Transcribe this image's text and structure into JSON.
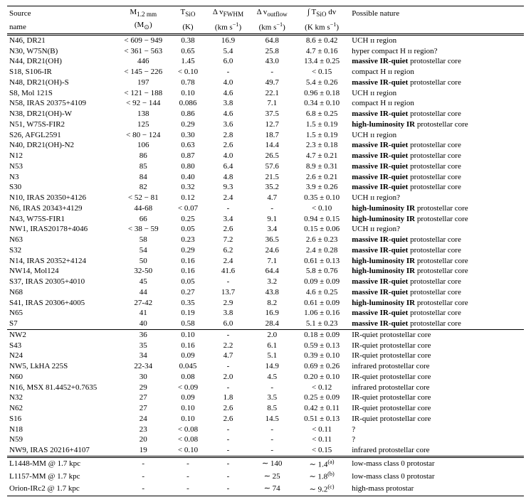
{
  "columns": {
    "name": {
      "h1": "Source",
      "h2": "name"
    },
    "m12": {
      "h1": "M<sub>1.2 mm</sub>",
      "h2": "(M<sub>⊙</sub>)"
    },
    "tsio": {
      "h1": "T<sub>SiO</sub>",
      "h2": "(K)"
    },
    "dvfwhm": {
      "h1": "Δ v<sub>FWHM</sub>",
      "h2": "(km s<sup>−1</sup>)"
    },
    "dvout": {
      "h1": "Δ v<sub>outflow</sub>",
      "h2": "(km s<sup>−1</sup>)"
    },
    "intTsio": {
      "h1": "∫ T<sub>SiO</sub> dv",
      "h2": "(K km s<sup>−1</sup>)"
    },
    "nature": {
      "h1": "Possible nature",
      "h2": ""
    }
  },
  "rows": [
    {
      "name": "N46, DR21",
      "m12": "< 609 − 949",
      "tsio": "0.38",
      "dvfwhm": "16.9",
      "dvout": "64.8",
      "int": "8.6 ± 0.42",
      "nature": "UCH ɪɪ region"
    },
    {
      "name": "N30, W75N(B)",
      "m12": "< 361 − 563",
      "tsio": "0.65",
      "dvfwhm": "5.4",
      "dvout": "25.8",
      "int": "4.7 ± 0.16",
      "nature": "hyper compact H ɪɪ region?"
    },
    {
      "name": "N44, DR21(OH)",
      "m12": "446",
      "tsio": "1.45",
      "dvfwhm": "6.0",
      "dvout": "43.0",
      "int": "13.4 ± 0.25",
      "nature": "<b>massive IR-quiet</b> protostellar core"
    },
    {
      "name": "S18, S106-IR",
      "m12": "< 145 − 226",
      "tsio": "< 0.10",
      "dvfwhm": "-",
      "dvout": "-",
      "int": "< 0.15",
      "nature": "compact H ɪɪ region"
    },
    {
      "name": "N48, DR21(OH)-S",
      "m12": "197",
      "tsio": "0.78",
      "dvfwhm": "4.0",
      "dvout": "49.7",
      "int": "5.4 ± 0.26",
      "nature": "<b>massive IR-quiet</b> protostellar core"
    },
    {
      "name": "S8, Mol 121S",
      "m12": "< 121 − 188",
      "tsio": "0.10",
      "dvfwhm": "4.6",
      "dvout": "22.1",
      "int": "0.96 ± 0.18",
      "nature": "UCH ɪɪ region"
    },
    {
      "name": "N58, IRAS 20375+4109",
      "m12": "< 92 − 144",
      "tsio": "0.086",
      "dvfwhm": "3.8",
      "dvout": "7.1",
      "int": "0.34 ± 0.10",
      "nature": "compact H ɪɪ region"
    },
    {
      "name": "N38, DR21(OH)-W",
      "m12": "138",
      "tsio": "0.86",
      "dvfwhm": "4.6",
      "dvout": "37.5",
      "int": "6.8 ± 0.25",
      "nature": "<b>massive IR-quiet</b> protostellar core"
    },
    {
      "name": "N51, W75S-FIR2",
      "m12": "125",
      "tsio": "0.29",
      "dvfwhm": "3.6",
      "dvout": "12.7",
      "int": "1.5 ± 0.19",
      "nature": "<b>high-luminosity IR</b> protostellar core"
    },
    {
      "name": "S26, AFGL2591",
      "m12": "< 80 − 124",
      "tsio": "0.30",
      "dvfwhm": "2.8",
      "dvout": "18.7",
      "int": "1.5 ± 0.19",
      "nature": "UCH ɪɪ region"
    },
    {
      "name": "N40, DR21(OH)-N2",
      "m12": "106",
      "tsio": "0.63",
      "dvfwhm": "2.6",
      "dvout": "14.4",
      "int": "2.3 ± 0.18",
      "nature": "<b>massive IR-quiet</b> protostellar core"
    },
    {
      "name": "N12",
      "m12": "86",
      "tsio": "0.87",
      "dvfwhm": "4.0",
      "dvout": "26.5",
      "int": "4.7 ± 0.21",
      "nature": "<b>massive IR-quiet</b> protostellar core"
    },
    {
      "name": "N53",
      "m12": "85",
      "tsio": "0.80",
      "dvfwhm": "6.4",
      "dvout": "57.6",
      "int": "8.9 ± 0.31",
      "nature": "<b>massive IR-quiet</b> protostellar core"
    },
    {
      "name": "N3",
      "m12": "84",
      "tsio": "0.40",
      "dvfwhm": "4.8",
      "dvout": "21.5",
      "int": "2.6 ± 0.21",
      "nature": "<b>massive IR-quiet</b> protostellar core"
    },
    {
      "name": "S30",
      "m12": "82",
      "tsio": "0.32",
      "dvfwhm": "9.3",
      "dvout": "35.2",
      "int": "3.9 ± 0.26",
      "nature": "<b>massive IR-quiet</b> protostellar core"
    },
    {
      "name": "N10, IRAS 20350+4126",
      "m12": "< 52 − 81",
      "tsio": "0.12",
      "dvfwhm": "2.4",
      "dvout": "4.7",
      "int": "0.35 ± 0.10",
      "nature": "UCH ɪɪ region?"
    },
    {
      "name": "N6, IRAS 20343+4129",
      "m12": "44-68",
      "tsio": "< 0.07",
      "dvfwhm": "-",
      "dvout": "-",
      "int": "< 0.10",
      "nature": "<b>high-luminosity IR</b> protostellar core"
    },
    {
      "name": "N43, W75S-FIR1",
      "m12": "66",
      "tsio": "0.25",
      "dvfwhm": "3.4",
      "dvout": "9.1",
      "int": "0.94 ± 0.15",
      "nature": "<b>high-luminosity IR</b> protostellar core"
    },
    {
      "name": "NW1, IRAS20178+4046",
      "m12": "< 38 − 59",
      "tsio": "0.05",
      "dvfwhm": "2.6",
      "dvout": "3.4",
      "int": "0.15 ± 0.06",
      "nature": "UCH ɪɪ region?"
    },
    {
      "name": "N63",
      "m12": "58",
      "tsio": "0.23",
      "dvfwhm": "7.2",
      "dvout": "36.5",
      "int": "2.6 ± 0.23",
      "nature": "<b>massive IR-quiet</b> protostellar core"
    },
    {
      "name": "S32",
      "m12": "54",
      "tsio": "0.29",
      "dvfwhm": "6.2",
      "dvout": "24.6",
      "int": "2.4 ± 0.28",
      "nature": "<b>massive IR-quiet</b> protostellar core"
    },
    {
      "name": "N14, IRAS 20352+4124",
      "m12": "50",
      "tsio": "0.16",
      "dvfwhm": "2.4",
      "dvout": "7.1",
      "int": "0.61 ± 0.13",
      "nature": "<b>high-luminosity IR</b> protostellar core"
    },
    {
      "name": "NW14, Mol124",
      "m12": "32-50",
      "tsio": "0.16",
      "dvfwhm": "41.6",
      "dvout": "64.4",
      "int": "5.8 ± 0.76",
      "nature": "<b>high-luminosity IR</b> protostellar core"
    },
    {
      "name": "S37, IRAS 20305+4010",
      "m12": "45",
      "tsio": "0.05",
      "dvfwhm": "-",
      "dvout": "3.2",
      "int": "0.09 ± 0.09",
      "nature": "<b>massive IR-quiet</b> protostellar core"
    },
    {
      "name": "N68",
      "m12": "44",
      "tsio": "0.27",
      "dvfwhm": "13.7",
      "dvout": "43.8",
      "int": "4.6 ± 0.25",
      "nature": "<b>massive IR-quiet</b> protostellar core"
    },
    {
      "name": "S41, IRAS 20306+4005",
      "m12": "27-42",
      "tsio": "0.35",
      "dvfwhm": "2.9",
      "dvout": "8.2",
      "int": "0.61 ± 0.09",
      "nature": "<b>high-luminosity IR</b> protostellar core"
    },
    {
      "name": "N65",
      "m12": "41",
      "tsio": "0.19",
      "dvfwhm": "3.8",
      "dvout": "16.9",
      "int": "1.06 ± 0.16",
      "nature": "<b>massive IR-quiet</b> protostellar core"
    },
    {
      "name": "S7",
      "m12": "40",
      "tsio": "0.58",
      "dvfwhm": "6.0",
      "dvout": "28.4",
      "int": "5.1 ± 0.23",
      "nature": "<b>massive IR-quiet</b> protostellar core"
    },
    {
      "sep": true,
      "name": "NW2",
      "m12": "36",
      "tsio": "0.10",
      "dvfwhm": "-",
      "dvout": "2.0",
      "int": "0.18 ± 0.09",
      "nature": "IR-quiet protostellar core"
    },
    {
      "name": "S43",
      "m12": "35",
      "tsio": "0.16",
      "dvfwhm": "2.2",
      "dvout": "6.1",
      "int": "0.59 ± 0.13",
      "nature": "IR-quiet protostellar core"
    },
    {
      "name": "N24",
      "m12": "34",
      "tsio": "0.09",
      "dvfwhm": "4.7",
      "dvout": "5.1",
      "int": "0.39 ± 0.10",
      "nature": "IR-quiet protostellar core"
    },
    {
      "name": "NW5, LkHA 225S",
      "m12": "22-34",
      "tsio": "0.045",
      "dvfwhm": "-",
      "dvout": "14.9",
      "int": "0.69 ± 0.26",
      "nature": "infrared protostellar core"
    },
    {
      "name": "N60",
      "m12": "30",
      "tsio": "0.08",
      "dvfwhm": "2.0",
      "dvout": "4.5",
      "int": "0.20 ± 0.10",
      "nature": "IR-quiet protostellar core"
    },
    {
      "name": "N16, MSX 81.4452+0.7635",
      "m12": "29",
      "tsio": "< 0.09",
      "dvfwhm": "-",
      "dvout": "-",
      "int": "< 0.12",
      "nature": "infrared protostellar core"
    },
    {
      "name": "N32",
      "m12": "27",
      "tsio": "0.09",
      "dvfwhm": "1.8",
      "dvout": "3.5",
      "int": "0.25 ± 0.09",
      "nature": "IR-quiet protostellar core"
    },
    {
      "name": "N62",
      "m12": "27",
      "tsio": "0.10",
      "dvfwhm": "2.6",
      "dvout": "8.5",
      "int": "0.42 ± 0.11",
      "nature": "IR-quiet protostellar core"
    },
    {
      "name": "S16",
      "m12": "24",
      "tsio": "0.10",
      "dvfwhm": "2.6",
      "dvout": "14.5",
      "int": "0.51 ± 0.13",
      "nature": "IR-quiet protostellar core"
    },
    {
      "name": "N18",
      "m12": "23",
      "tsio": "< 0.08",
      "dvfwhm": "-",
      "dvout": "-",
      "int": "< 0.11",
      "nature": "?"
    },
    {
      "name": "N59",
      "m12": "20",
      "tsio": "< 0.08",
      "dvfwhm": "-",
      "dvout": "-",
      "int": "< 0.11",
      "nature": "?"
    },
    {
      "name": "NW9, IRAS 20216+4107",
      "m12": "19",
      "tsio": "< 0.10",
      "dvfwhm": "-",
      "dvout": "-",
      "int": "< 0.15",
      "nature": "infrared protostellar core"
    },
    {
      "dsep": true,
      "name": "L1448-MM @ 1.7 kpc",
      "m12": "-",
      "tsio": "-",
      "dvfwhm": "-",
      "dvout": "∼ 140",
      "int": "∼ 1.4<sup>(a)</sup>",
      "nature": "low-mass class 0 protostar"
    },
    {
      "name": "L1157-MM @ 1.7 kpc",
      "m12": "-",
      "tsio": "-",
      "dvfwhm": "-",
      "dvout": "∼ 25",
      "int": "∼ 1.8<sup>(b)</sup>",
      "nature": "low-mass class 0 protostar"
    },
    {
      "name": "Orion-IRc2 @ 1.7 kpc",
      "m12": "-",
      "tsio": "-",
      "dvfwhm": "-",
      "dvout": "∼ 74",
      "int": "∼ 9.2<sup>(c)</sup>",
      "nature": "high-mass protostar",
      "last": true
    }
  ]
}
